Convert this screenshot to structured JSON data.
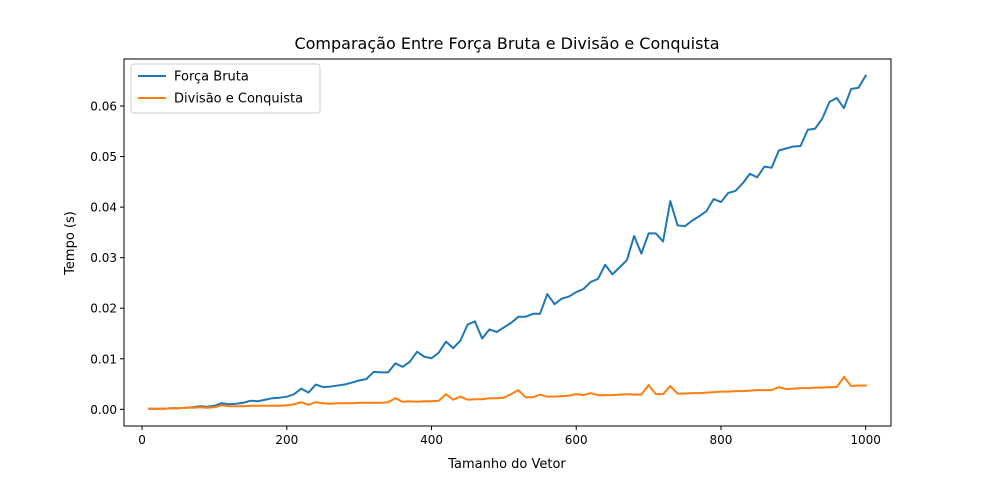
{
  "chart_data": {
    "type": "line",
    "title": "Comparação Entre Força Bruta e Divisão e Conquista",
    "xlabel": "Tamanho do Vetor",
    "ylabel": "Tempo (s)",
    "xlim": [
      -25,
      1035
    ],
    "ylim": [
      -0.0033,
      0.0693
    ],
    "xticks": [
      0,
      200,
      400,
      600,
      800,
      1000
    ],
    "xtick_labels": [
      "0",
      "200",
      "400",
      "600",
      "800",
      "1000"
    ],
    "yticks": [
      0.0,
      0.01,
      0.02,
      0.03,
      0.04,
      0.05,
      0.06
    ],
    "ytick_labels": [
      "0.00",
      "0.01",
      "0.02",
      "0.03",
      "0.04",
      "0.05",
      "0.06"
    ],
    "grid": false,
    "legend_position": "top-left",
    "x": [
      10,
      20,
      30,
      40,
      50,
      60,
      70,
      80,
      90,
      100,
      110,
      120,
      130,
      140,
      150,
      160,
      170,
      180,
      190,
      200,
      210,
      220,
      230,
      240,
      250,
      260,
      270,
      280,
      290,
      300,
      310,
      320,
      330,
      340,
      350,
      360,
      370,
      380,
      390,
      400,
      410,
      420,
      430,
      440,
      450,
      460,
      470,
      480,
      490,
      500,
      510,
      520,
      530,
      540,
      550,
      560,
      570,
      580,
      590,
      600,
      610,
      620,
      630,
      640,
      650,
      660,
      670,
      680,
      690,
      700,
      710,
      720,
      730,
      740,
      750,
      760,
      770,
      780,
      790,
      800,
      810,
      820,
      830,
      840,
      850,
      860,
      870,
      880,
      890,
      900,
      910,
      920,
      930,
      940,
      950,
      960,
      970,
      980,
      990,
      1000
    ],
    "series": [
      {
        "name": "Força Bruta",
        "color": "#1f77b4",
        "values": [
          0.0001,
          0.0001,
          0.0001,
          0.0002,
          0.0002,
          0.0003,
          0.0004,
          0.0006,
          0.0005,
          0.0007,
          0.0012,
          0.001,
          0.0011,
          0.0013,
          0.0017,
          0.0016,
          0.0019,
          0.0022,
          0.0023,
          0.0025,
          0.003,
          0.0041,
          0.0033,
          0.0049,
          0.0044,
          0.0045,
          0.0047,
          0.0049,
          0.0053,
          0.0057,
          0.006,
          0.0074,
          0.0073,
          0.0073,
          0.0091,
          0.0084,
          0.0094,
          0.0114,
          0.0104,
          0.0101,
          0.0112,
          0.0134,
          0.0121,
          0.0136,
          0.0168,
          0.0174,
          0.014,
          0.0158,
          0.0153,
          0.0162,
          0.0171,
          0.0183,
          0.0183,
          0.0189,
          0.0189,
          0.0228,
          0.0208,
          0.0219,
          0.0223,
          0.0232,
          0.0238,
          0.0252,
          0.0258,
          0.0286,
          0.0267,
          0.0281,
          0.0295,
          0.0343,
          0.0308,
          0.0348,
          0.0348,
          0.0332,
          0.0412,
          0.0364,
          0.0362,
          0.0373,
          0.0382,
          0.0392,
          0.0416,
          0.041,
          0.0428,
          0.0432,
          0.0447,
          0.0466,
          0.0459,
          0.048,
          0.0478,
          0.0512,
          0.0516,
          0.052,
          0.0521,
          0.0553,
          0.0555,
          0.0575,
          0.0608,
          0.0616,
          0.0596,
          0.0634,
          0.0636,
          0.066
        ]
      },
      {
        "name": "Divisão e Conquista",
        "color": "#ff7f0e",
        "values": [
          0.0001,
          0.0001,
          0.0001,
          0.0002,
          0.0002,
          0.0003,
          0.0003,
          0.0004,
          0.0003,
          0.0004,
          0.0008,
          0.0006,
          0.0006,
          0.0006,
          0.0007,
          0.0007,
          0.0007,
          0.0007,
          0.0007,
          0.0008,
          0.001,
          0.0014,
          0.0009,
          0.0014,
          0.0012,
          0.0011,
          0.0012,
          0.0012,
          0.0012,
          0.0013,
          0.0013,
          0.0013,
          0.0013,
          0.0014,
          0.0022,
          0.0015,
          0.0016,
          0.0015,
          0.0016,
          0.0016,
          0.0017,
          0.003,
          0.0019,
          0.0025,
          0.0019,
          0.002,
          0.002,
          0.0022,
          0.0022,
          0.0023,
          0.003,
          0.0038,
          0.0024,
          0.0024,
          0.0029,
          0.0025,
          0.0025,
          0.0026,
          0.0027,
          0.003,
          0.0028,
          0.0032,
          0.0028,
          0.0028,
          0.0028,
          0.0029,
          0.003,
          0.0029,
          0.0029,
          0.0048,
          0.003,
          0.003,
          0.0046,
          0.0031,
          0.0031,
          0.0032,
          0.0032,
          0.0033,
          0.0034,
          0.0035,
          0.0035,
          0.0036,
          0.0036,
          0.0037,
          0.0038,
          0.0038,
          0.0038,
          0.0044,
          0.004,
          0.0041,
          0.0042,
          0.0042,
          0.0043,
          0.0043,
          0.0044,
          0.0044,
          0.0064,
          0.0046,
          0.0047,
          0.0047
        ]
      }
    ]
  }
}
